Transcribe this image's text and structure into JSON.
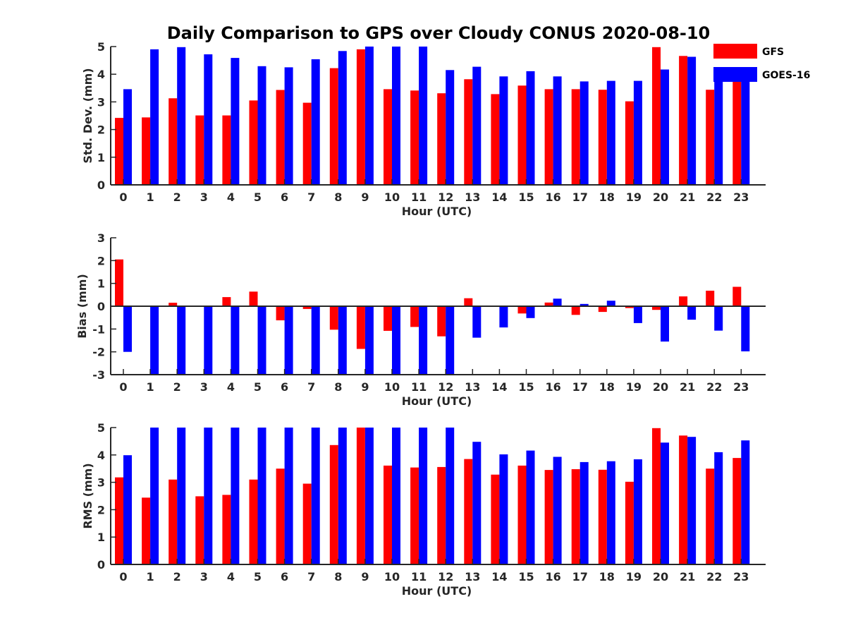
{
  "colors": {
    "gfs": "#ff0000",
    "goes": "#0000ff",
    "axis": "#262626",
    "background": "#ffffff"
  },
  "chart_data": {
    "title": "Daily Comparison to GPS over Cloudy CONUS 2020-08-10",
    "legend": {
      "placement": "top-right",
      "entries": [
        {
          "name": "GFS",
          "color": "#ff0000"
        },
        {
          "name": "GOES-16",
          "color": "#0000ff"
        }
      ]
    },
    "panels": [
      {
        "type": "bar",
        "xlabel": "Hour (UTC)",
        "ylabel": "Std. Dev. (mm)",
        "ylim": [
          0,
          5
        ],
        "yticks": [
          "0",
          "1",
          "2",
          "3",
          "4",
          "5"
        ],
        "categories": [
          "0",
          "1",
          "2",
          "3",
          "4",
          "5",
          "6",
          "7",
          "8",
          "9",
          "10",
          "11",
          "12",
          "13",
          "14",
          "15",
          "16",
          "17",
          "18",
          "19",
          "20",
          "21",
          "22",
          "23"
        ],
        "series": [
          {
            "name": "GFS",
            "values": [
              2.42,
              2.44,
              3.13,
              2.51,
              2.51,
              3.05,
              3.43,
              2.97,
              4.22,
              4.9,
              3.46,
              3.41,
              3.31,
              3.82,
              3.28,
              3.59,
              3.46,
              3.46,
              3.44,
              3.02,
              4.98,
              4.66,
              3.44,
              3.82
            ]
          },
          {
            "name": "GOES-16",
            "values": [
              3.46,
              4.9,
              4.98,
              4.72,
              4.59,
              4.29,
              4.25,
              4.54,
              4.84,
              5.0,
              5.0,
              5.0,
              4.15,
              4.27,
              3.92,
              4.11,
              3.92,
              3.74,
              3.76,
              3.76,
              4.17,
              4.63,
              3.92,
              4.0
            ]
          }
        ]
      },
      {
        "type": "bar",
        "xlabel": "Hour (UTC)",
        "ylabel": "Bias (mm)",
        "ylim": [
          -3,
          3
        ],
        "yticks": [
          "-3",
          "-2",
          "-1",
          "0",
          "1",
          "2",
          "3"
        ],
        "categories": [
          "0",
          "1",
          "2",
          "3",
          "4",
          "5",
          "6",
          "7",
          "8",
          "9",
          "10",
          "11",
          "12",
          "13",
          "14",
          "15",
          "16",
          "17",
          "18",
          "19",
          "20",
          "21",
          "22",
          "23"
        ],
        "series": [
          {
            "name": "GFS",
            "values": [
              2.05,
              0.0,
              0.15,
              0.03,
              0.4,
              0.64,
              -0.62,
              -0.12,
              -1.03,
              -1.87,
              -1.08,
              -0.91,
              -1.32,
              0.35,
              0.0,
              -0.32,
              0.16,
              -0.38,
              -0.25,
              -0.08,
              -0.16,
              0.43,
              0.68,
              0.85
            ]
          },
          {
            "name": "GOES-16",
            "values": [
              -2.0,
              -3.0,
              -3.0,
              -3.0,
              -3.0,
              -3.0,
              -3.0,
              -3.0,
              -3.0,
              -3.0,
              -3.0,
              -3.0,
              -3.0,
              -1.38,
              -0.93,
              -0.52,
              0.33,
              0.1,
              0.24,
              -0.74,
              -1.55,
              -0.59,
              -1.07,
              -1.98
            ]
          }
        ]
      },
      {
        "type": "bar",
        "xlabel": "Hour (UTC)",
        "ylabel": "RMS (mm)",
        "ylim": [
          0,
          5
        ],
        "yticks": [
          "0",
          "1",
          "2",
          "3",
          "4",
          "5"
        ],
        "categories": [
          "0",
          "1",
          "2",
          "3",
          "4",
          "5",
          "6",
          "7",
          "8",
          "9",
          "10",
          "11",
          "12",
          "13",
          "14",
          "15",
          "16",
          "17",
          "18",
          "19",
          "20",
          "21",
          "22",
          "23"
        ],
        "series": [
          {
            "name": "GFS",
            "values": [
              3.18,
              2.44,
              3.1,
              2.49,
              2.54,
              3.1,
              3.5,
              2.95,
              4.36,
              5.0,
              3.61,
              3.54,
              3.56,
              3.85,
              3.28,
              3.61,
              3.45,
              3.48,
              3.46,
              3.02,
              4.98,
              4.71,
              3.5,
              3.89
            ]
          },
          {
            "name": "GOES-16",
            "values": [
              3.99,
              5.0,
              5.0,
              5.0,
              5.0,
              5.0,
              5.0,
              5.0,
              5.0,
              5.0,
              5.0,
              5.0,
              5.0,
              4.48,
              4.02,
              4.16,
              3.93,
              3.74,
              3.77,
              3.84,
              4.45,
              4.66,
              4.1,
              4.53
            ]
          }
        ]
      }
    ]
  }
}
